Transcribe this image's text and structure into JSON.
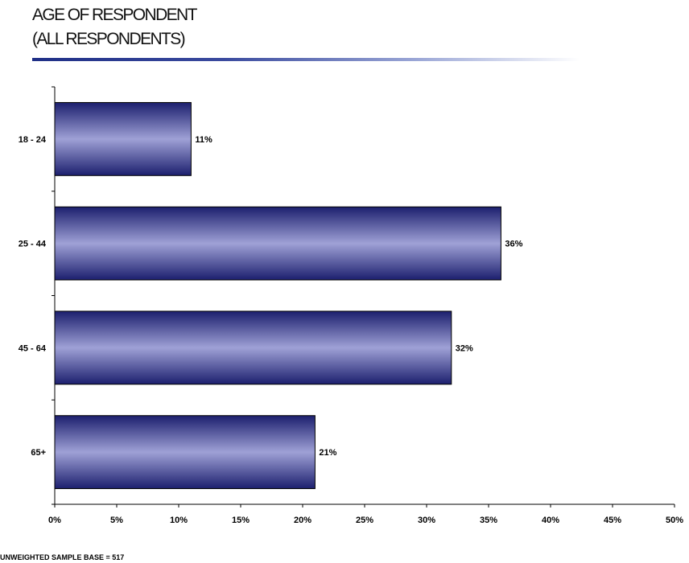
{
  "title": {
    "line1": "AGE OF RESPONDENT",
    "line2": "(ALL RESPONDENTS)"
  },
  "footnote": "UNWEIGHTED SAMPLE BASE = 517",
  "colors": {
    "bar_dark": "#1c1f6e",
    "bar_light": "#9fa1d6",
    "axis": "#000000"
  },
  "chart_data": {
    "type": "bar",
    "orientation": "horizontal",
    "categories": [
      "18 - 24",
      "25 - 44",
      "45 - 64",
      "65+"
    ],
    "values": [
      11,
      36,
      32,
      21
    ],
    "value_labels": [
      "11%",
      "36%",
      "32%",
      "21%"
    ],
    "xlim": [
      0,
      50
    ],
    "xticks": [
      "0%",
      "5%",
      "10%",
      "15%",
      "20%",
      "25%",
      "30%",
      "35%",
      "40%",
      "45%",
      "50%"
    ],
    "grid": false,
    "legend": "none"
  }
}
